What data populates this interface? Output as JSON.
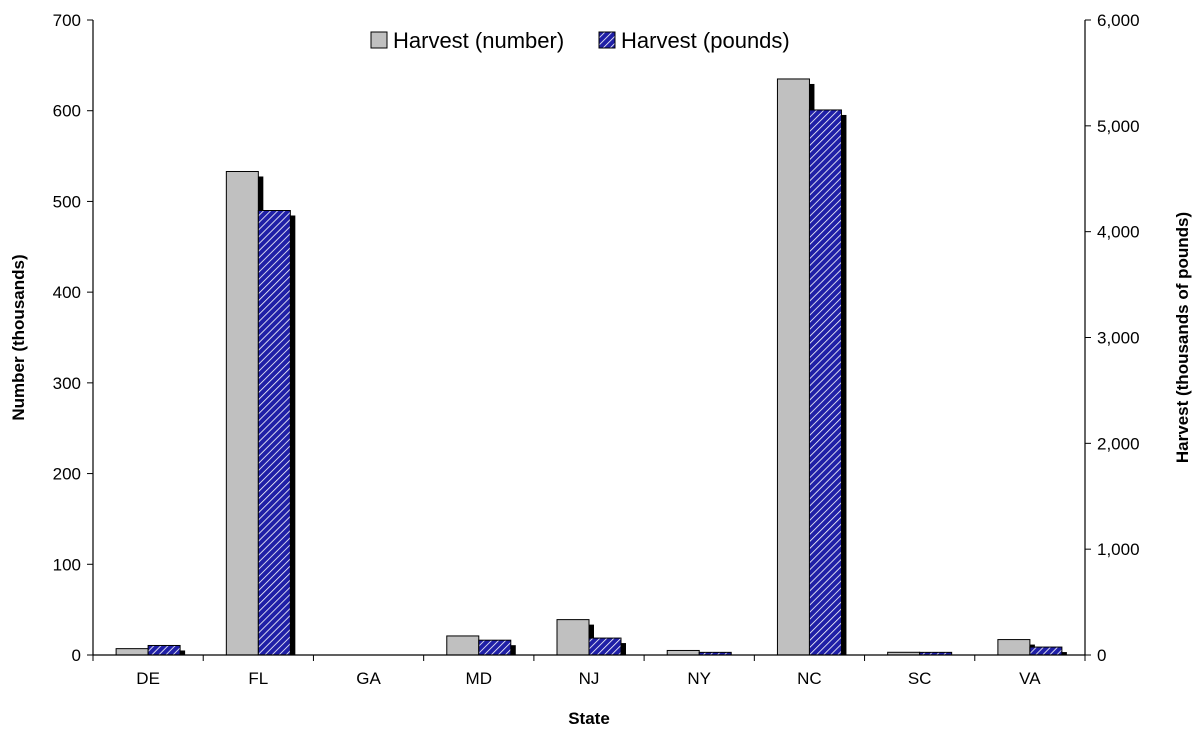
{
  "chart_data": {
    "type": "bar",
    "categories": [
      "DE",
      "FL",
      "GA",
      "MD",
      "NJ",
      "NY",
      "NC",
      "SC",
      "VA"
    ],
    "series": [
      {
        "name": "Harvest (number)",
        "axis": "left",
        "values": [
          7,
          533,
          0,
          21,
          39,
          5,
          635,
          3,
          17
        ],
        "color": "#c0c0c0",
        "pattern": "solid"
      },
      {
        "name": "Harvest (pounds)",
        "axis": "right",
        "values": [
          90,
          4200,
          0,
          140,
          160,
          25,
          5150,
          25,
          75
        ],
        "color": "#1f1fa6",
        "pattern": "diagonal-stripes"
      }
    ],
    "xlabel": "State",
    "ylabel": "Number (thousands)",
    "y2label": "Harvest (thousands of pounds)",
    "ylim": [
      0,
      700
    ],
    "y2lim": [
      0,
      6000
    ],
    "yticks": [
      "0",
      "100",
      "200",
      "300",
      "400",
      "500",
      "600",
      "700"
    ],
    "y2ticks": [
      "0",
      "1,000",
      "2,000",
      "3,000",
      "4,000",
      "5,000",
      "6,000"
    ],
    "legend_position": "top-center",
    "grid": false
  }
}
